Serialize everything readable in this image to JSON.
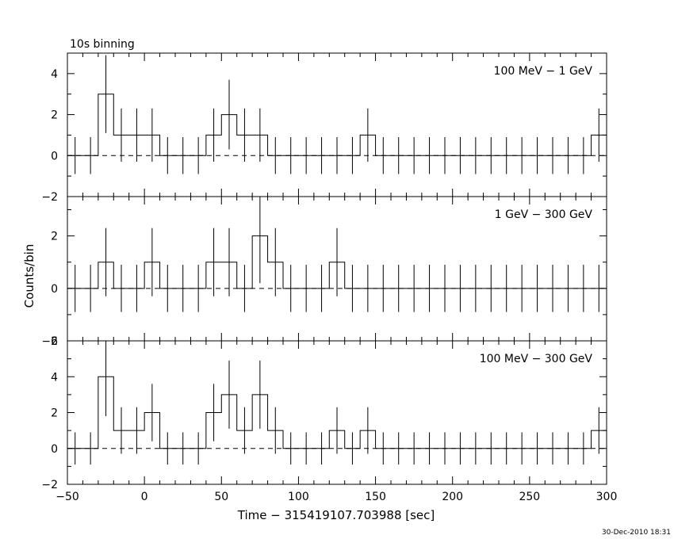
{
  "figure": {
    "top_label": "10s binning",
    "xlabel": "Time − 315419107.703988 [sec]",
    "ylabel": "Counts/bin",
    "timestamp": "30-Dec-2010 18:31"
  },
  "chart_data": [
    {
      "type": "line",
      "style": "histogram-with-error-bars",
      "title": "",
      "panel_label": "100 MeV − 1 GeV",
      "xlim": [
        -50,
        300
      ],
      "ylim": [
        -2,
        5
      ],
      "yticks": [
        -2,
        0,
        2,
        4
      ],
      "xticks": [
        -50,
        0,
        50,
        100,
        150,
        200,
        250,
        300
      ],
      "grid": false,
      "bin_width": 10,
      "x": [
        -45,
        -35,
        -25,
        -15,
        -5,
        5,
        15,
        25,
        35,
        45,
        55,
        65,
        75,
        85,
        95,
        105,
        115,
        125,
        135,
        145,
        155,
        165,
        175,
        185,
        195,
        205,
        215,
        225,
        235,
        245,
        255,
        265,
        275,
        285,
        295
      ],
      "y": [
        0,
        0,
        3,
        1,
        1,
        1,
        0,
        0,
        0,
        1,
        2,
        1,
        1,
        0,
        0,
        0,
        0,
        0,
        0,
        1,
        0,
        0,
        0,
        0,
        0,
        0,
        0,
        0,
        0,
        0,
        0,
        0,
        0,
        0,
        1
      ],
      "error": [
        0.9,
        0.9,
        1.9,
        1.3,
        1.3,
        1.3,
        0.9,
        0.9,
        0.9,
        1.3,
        1.7,
        1.3,
        1.3,
        0.9,
        0.9,
        0.9,
        0.9,
        0.9,
        0.9,
        1.3,
        0.9,
        0.9,
        0.9,
        0.9,
        0.9,
        0.9,
        0.9,
        0.9,
        0.9,
        0.9,
        0.9,
        0.9,
        0.9,
        0.9,
        1.3
      ],
      "background": 0
    },
    {
      "type": "line",
      "style": "histogram-with-error-bars",
      "title": "",
      "panel_label": "1 GeV − 300 GeV",
      "xlim": [
        -50,
        300
      ],
      "ylim": [
        -2,
        3.5
      ],
      "yticks": [
        -2,
        0,
        2
      ],
      "xticks": [
        -50,
        0,
        50,
        100,
        150,
        200,
        250,
        300
      ],
      "grid": false,
      "bin_width": 10,
      "x": [
        -45,
        -35,
        -25,
        -15,
        -5,
        5,
        15,
        25,
        35,
        45,
        55,
        65,
        75,
        85,
        95,
        105,
        115,
        125,
        135,
        145,
        155,
        165,
        175,
        185,
        195,
        205,
        215,
        225,
        235,
        245,
        255,
        265,
        275,
        285,
        295
      ],
      "y": [
        0,
        0,
        1,
        0,
        0,
        1,
        0,
        0,
        0,
        1,
        1,
        0,
        2,
        1,
        0,
        0,
        0,
        1,
        0,
        0,
        0,
        0,
        0,
        0,
        0,
        0,
        0,
        0,
        0,
        0,
        0,
        0,
        0,
        0,
        0
      ],
      "error": [
        0.9,
        0.9,
        1.3,
        0.9,
        0.9,
        1.3,
        0.9,
        0.9,
        0.9,
        1.3,
        1.3,
        0.9,
        1.8,
        1.3,
        0.9,
        0.9,
        0.9,
        1.3,
        0.9,
        0.9,
        0.9,
        0.9,
        0.9,
        0.9,
        0.9,
        0.9,
        0.9,
        0.9,
        0.9,
        0.9,
        0.9,
        0.9,
        0.9,
        0.9,
        0.9
      ],
      "background": 0
    },
    {
      "type": "line",
      "style": "histogram-with-error-bars",
      "title": "",
      "panel_label": "100 MeV − 300 GeV",
      "xlim": [
        -50,
        300
      ],
      "ylim": [
        -2,
        6
      ],
      "yticks": [
        -2,
        0,
        2,
        4,
        6
      ],
      "xticks": [
        -50,
        0,
        50,
        100,
        150,
        200,
        250,
        300
      ],
      "xtick_labels": [
        "−50",
        "0",
        "50",
        "100",
        "150",
        "200",
        "250",
        "300"
      ],
      "grid": false,
      "bin_width": 10,
      "x": [
        -45,
        -35,
        -25,
        -15,
        -5,
        5,
        15,
        25,
        35,
        45,
        55,
        65,
        75,
        85,
        95,
        105,
        115,
        125,
        135,
        145,
        155,
        165,
        175,
        185,
        195,
        205,
        215,
        225,
        235,
        245,
        255,
        265,
        275,
        285,
        295
      ],
      "y": [
        0,
        0,
        4,
        1,
        1,
        2,
        0,
        0,
        0,
        2,
        3,
        1,
        3,
        1,
        0,
        0,
        0,
        1,
        0,
        1,
        0,
        0,
        0,
        0,
        0,
        0,
        0,
        0,
        0,
        0,
        0,
        0,
        0,
        0,
        1
      ],
      "error": [
        0.9,
        0.9,
        2.2,
        1.3,
        1.3,
        1.6,
        0.9,
        0.9,
        0.9,
        1.6,
        1.9,
        1.3,
        1.9,
        1.3,
        0.9,
        0.9,
        0.9,
        1.3,
        0.9,
        1.3,
        0.9,
        0.9,
        0.9,
        0.9,
        0.9,
        0.9,
        0.9,
        0.9,
        0.9,
        0.9,
        0.9,
        0.9,
        0.9,
        0.9,
        1.3
      ],
      "background": 0
    }
  ]
}
